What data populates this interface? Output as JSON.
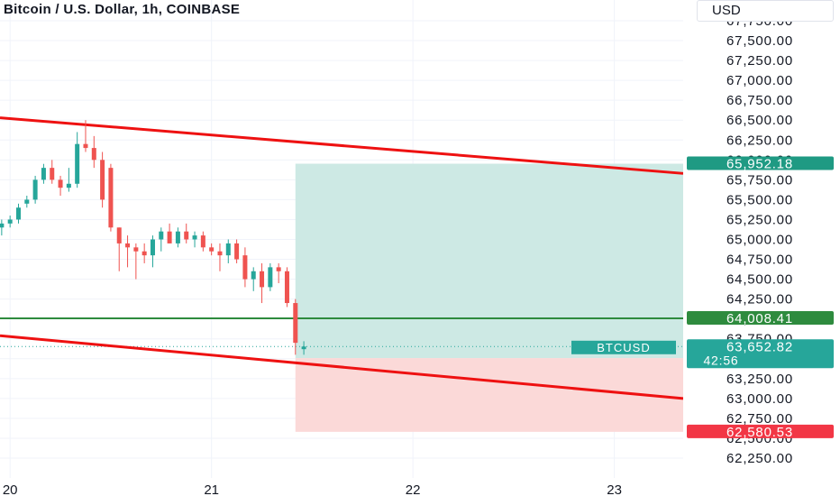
{
  "header": {
    "title": "Bitcoin / U.S. Dollar, 1h, COINBASE",
    "currency": "USD"
  },
  "chart_data": {
    "type": "candlestick",
    "symbol": "BTCUSD",
    "y_ticks": [
      "67,750.00",
      "67,500.00",
      "67,250.00",
      "67,000.00",
      "66,750.00",
      "66,500.00",
      "66,250.00",
      "66,000.00",
      "65,750.00",
      "65,500.00",
      "65,250.00",
      "65,000.00",
      "64,750.00",
      "64,500.00",
      "64,250.00",
      "64,000.00",
      "63,750.00",
      "63,500.00",
      "63,250.00",
      "63,000.00",
      "62,750.00",
      "62,500.00",
      "62,250.00"
    ],
    "y_tick_values": [
      67750,
      67500,
      67250,
      67000,
      66750,
      66500,
      66250,
      66000,
      65750,
      65500,
      65250,
      65000,
      64750,
      64500,
      64250,
      64000,
      63750,
      63500,
      63250,
      63000,
      62750,
      62500,
      62250
    ],
    "ylim": [
      62150,
      67900
    ],
    "x_ticks": [
      "20",
      "21",
      "22",
      "23"
    ],
    "x_tick_hours": [
      0,
      24,
      48,
      72
    ],
    "xlim": [
      -1.2,
      80.2
    ],
    "candles": [
      {
        "o": 65150,
        "h": 65250,
        "l": 65050,
        "c": 65200
      },
      {
        "o": 65200,
        "h": 65300,
        "l": 65150,
        "c": 65250
      },
      {
        "o": 65250,
        "h": 65450,
        "l": 65200,
        "c": 65400
      },
      {
        "o": 65450,
        "h": 65550,
        "l": 65400,
        "c": 65500
      },
      {
        "o": 65500,
        "h": 65800,
        "l": 65450,
        "c": 65750
      },
      {
        "o": 65750,
        "h": 65950,
        "l": 65700,
        "c": 65900
      },
      {
        "o": 65900,
        "h": 66000,
        "l": 65700,
        "c": 65750
      },
      {
        "o": 65750,
        "h": 65800,
        "l": 65550,
        "c": 65650
      },
      {
        "o": 65650,
        "h": 65900,
        "l": 65600,
        "c": 65700
      },
      {
        "o": 65700,
        "h": 66350,
        "l": 65650,
        "c": 66200
      },
      {
        "o": 66200,
        "h": 66500,
        "l": 66100,
        "c": 66150
      },
      {
        "o": 66150,
        "h": 66300,
        "l": 65900,
        "c": 66000
      },
      {
        "o": 66000,
        "h": 66100,
        "l": 65400,
        "c": 65500
      },
      {
        "o": 65900,
        "h": 65950,
        "l": 65100,
        "c": 65150
      },
      {
        "o": 65150,
        "h": 65150,
        "l": 64600,
        "c": 64950
      },
      {
        "o": 64950,
        "h": 65050,
        "l": 64650,
        "c": 64900
      },
      {
        "o": 64900,
        "h": 64950,
        "l": 64500,
        "c": 64850
      },
      {
        "o": 64850,
        "h": 64950,
        "l": 64700,
        "c": 64800
      },
      {
        "o": 64800,
        "h": 65050,
        "l": 64650,
        "c": 65000
      },
      {
        "o": 65000,
        "h": 65150,
        "l": 64850,
        "c": 65100
      },
      {
        "o": 65100,
        "h": 65200,
        "l": 64950,
        "c": 64950
      },
      {
        "o": 64950,
        "h": 65150,
        "l": 64900,
        "c": 65100
      },
      {
        "o": 65100,
        "h": 65200,
        "l": 64950,
        "c": 65000
      },
      {
        "o": 65000,
        "h": 65100,
        "l": 64900,
        "c": 65050
      },
      {
        "o": 65050,
        "h": 65100,
        "l": 64850,
        "c": 64900
      },
      {
        "o": 64900,
        "h": 64950,
        "l": 64800,
        "c": 64850
      },
      {
        "o": 64850,
        "h": 64950,
        "l": 64600,
        "c": 64800
      },
      {
        "o": 64800,
        "h": 65000,
        "l": 64700,
        "c": 64950
      },
      {
        "o": 64950,
        "h": 65000,
        "l": 64700,
        "c": 64750
      },
      {
        "o": 64800,
        "h": 64900,
        "l": 64400,
        "c": 64500
      },
      {
        "o": 64500,
        "h": 64650,
        "l": 64350,
        "c": 64600
      },
      {
        "o": 64600,
        "h": 64700,
        "l": 64200,
        "c": 64400
      },
      {
        "o": 64400,
        "h": 64700,
        "l": 64350,
        "c": 64650
      },
      {
        "o": 64650,
        "h": 64700,
        "l": 64450,
        "c": 64600
      },
      {
        "o": 64600,
        "h": 64650,
        "l": 64150,
        "c": 64200
      },
      {
        "o": 64200,
        "h": 64250,
        "l": 63550,
        "c": 63700
      },
      {
        "o": 63620,
        "h": 63720,
        "l": 63550,
        "c": 63653
      }
    ],
    "upper_line": {
      "x": [
        -1.2,
        80.2
      ],
      "y": [
        66530,
        65830
      ]
    },
    "lower_line": {
      "x": [
        -1.2,
        80.2
      ],
      "y": [
        63790,
        63000
      ]
    },
    "horizontal_line": {
      "price": 64008.41,
      "label": "64,008.41",
      "color": "#2e8b3e"
    },
    "position": {
      "entry": 63507.88,
      "target": 65952.18,
      "stop": 62580.53,
      "x_start": 34,
      "x_end": 80.2,
      "entry_label": "63,507.88",
      "target_label": "65,952.18",
      "stop_label": "62,580.53"
    },
    "last_price": {
      "value": 63652.82,
      "label": "63,652.82",
      "countdown": "42:56",
      "symbol": "BTCUSD"
    },
    "colors": {
      "up": "#26a69a",
      "down": "#ef5350",
      "trend": "#ee1111",
      "profit_zone": "#cde9e4",
      "loss_zone": "#fbd9d8",
      "grid": "#f0f3fa"
    }
  }
}
